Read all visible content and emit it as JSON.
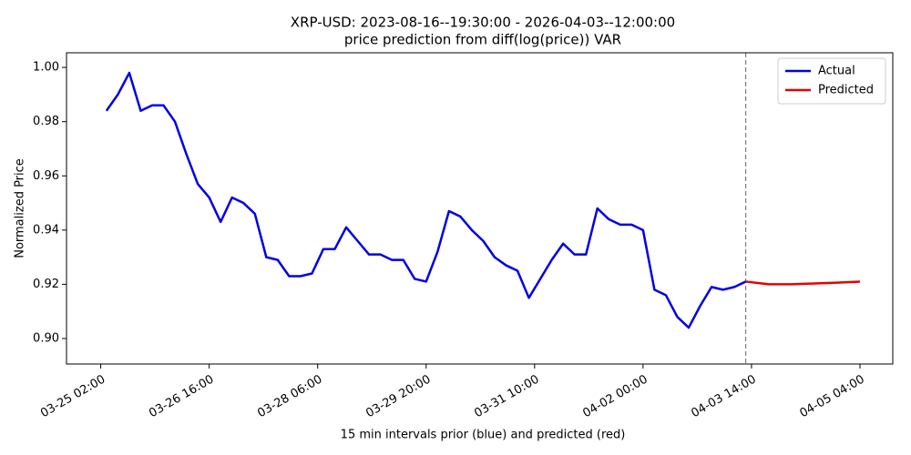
{
  "chart_data": {
    "type": "line",
    "title": "XRP-USD: 2023-08-16--19:30:00 - 2026-04-03--12:00:00",
    "subtitle": "price prediction from diff(log(price)) VAR",
    "x_label": "15 min intervals prior (blue) and predicted (red)",
    "y_label": "Normalized Price",
    "xlim": [
      "03-24 14:00",
      "04-05 15:30"
    ],
    "ylim": [
      0.8906,
      1.0054
    ],
    "xticks": [
      "03-25 02:00",
      "03-26 16:00",
      "03-28 06:00",
      "03-29 20:00",
      "03-31 10:00",
      "04-02 00:00",
      "04-03 14:00",
      "04-05 04:00"
    ],
    "yticks": [
      {
        "value": 0.9,
        "label": "0.90"
      },
      {
        "value": 0.92,
        "label": "0.92"
      },
      {
        "value": 0.94,
        "label": "0.94"
      },
      {
        "value": 0.96,
        "label": "0.96"
      },
      {
        "value": 0.98,
        "label": "0.98"
      },
      {
        "value": 1.0,
        "label": "1.00"
      }
    ],
    "vline": "04-03 12:00",
    "legend": "upper right",
    "series": [
      {
        "name": "Actual",
        "color": "#0000e6",
        "x": [
          "03-25 04:00",
          "03-25 08:00",
          "03-25 12:00",
          "03-25 16:00",
          "03-25 20:00",
          "03-26 00:00",
          "03-26 04:00",
          "03-26 08:00",
          "03-26 12:00",
          "03-26 16:00",
          "03-26 20:00",
          "03-27 00:00",
          "03-27 04:00",
          "03-27 08:00",
          "03-27 12:00",
          "03-27 16:00",
          "03-27 20:00",
          "03-28 00:00",
          "03-28 04:00",
          "03-28 08:00",
          "03-28 12:00",
          "03-28 16:00",
          "03-28 20:00",
          "03-29 00:00",
          "03-29 04:00",
          "03-29 08:00",
          "03-29 12:00",
          "03-29 16:00",
          "03-29 20:00",
          "03-30 00:00",
          "03-30 04:00",
          "03-30 08:00",
          "03-30 12:00",
          "03-30 16:00",
          "03-30 20:00",
          "03-31 00:00",
          "03-31 04:00",
          "03-31 08:00",
          "03-31 12:00",
          "03-31 16:00",
          "03-31 20:00",
          "04-01 00:00",
          "04-01 04:00",
          "04-01 08:00",
          "04-01 12:00",
          "04-01 16:00",
          "04-01 20:00",
          "04-02 00:00",
          "04-02 04:00",
          "04-02 08:00",
          "04-02 12:00",
          "04-02 16:00",
          "04-02 20:00",
          "04-03 00:00",
          "04-03 04:00",
          "04-03 08:00",
          "04-03 12:00"
        ],
        "values": [
          0.984,
          0.99,
          0.998,
          0.984,
          0.986,
          0.986,
          0.98,
          0.968,
          0.957,
          0.952,
          0.943,
          0.952,
          0.95,
          0.946,
          0.93,
          0.929,
          0.923,
          0.923,
          0.924,
          0.933,
          0.933,
          0.941,
          0.936,
          0.931,
          0.931,
          0.929,
          0.929,
          0.922,
          0.921,
          0.932,
          0.947,
          0.945,
          0.94,
          0.936,
          0.93,
          0.927,
          0.925,
          0.915,
          0.922,
          0.929,
          0.935,
          0.931,
          0.931,
          0.948,
          0.944,
          0.942,
          0.942,
          0.94,
          0.918,
          0.916,
          0.908,
          0.904,
          0.912,
          0.919,
          0.918,
          0.919,
          0.921
        ]
      },
      {
        "name": "Predicted",
        "color": "#e60000",
        "x": [
          "04-03 12:00",
          "04-03 20:00",
          "04-04 04:00",
          "04-04 12:00",
          "04-04 20:00",
          "04-05 04:00"
        ],
        "values": [
          0.921,
          0.92,
          0.92,
          0.9203,
          0.9206,
          0.921
        ]
      }
    ]
  }
}
